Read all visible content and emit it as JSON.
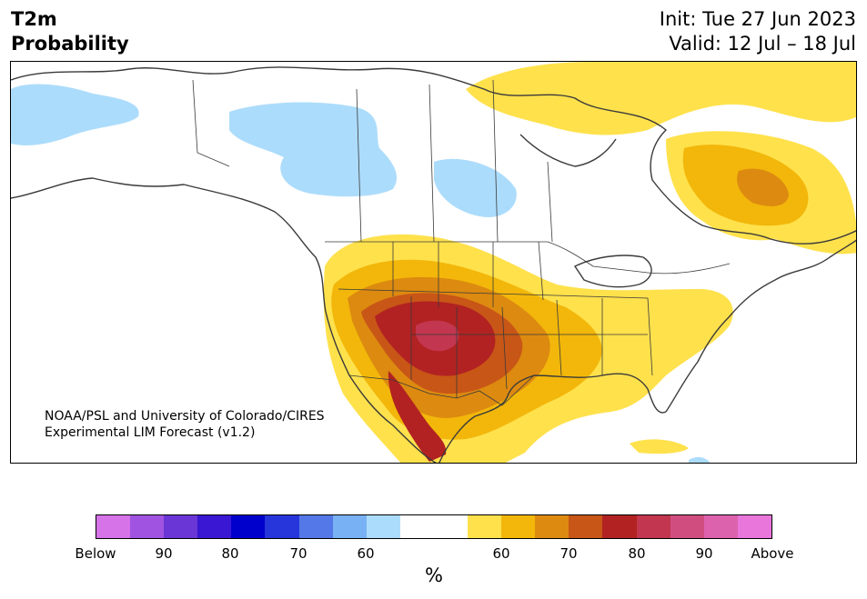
{
  "title": {
    "variable_line1": "T2m",
    "variable_line2": "Probability",
    "init": "Init: Tue 27 Jun 2023",
    "valid": "Valid: 12 Jul – 18 Jul"
  },
  "credit": {
    "line1": "NOAA/PSL and University of Colorado/CIRES",
    "line2": "Experimental LIM Forecast (v1.2)"
  },
  "colorbar": {
    "colors": [
      "#d673e8",
      "#a053e0",
      "#6a37d6",
      "#3a18d3",
      "#0000cc",
      "#2636db",
      "#5478e8",
      "#78b2f4",
      "#acdcfb",
      "#ffffff",
      "#ffffff",
      "#ffe14c",
      "#f2b70a",
      "#dd8a10",
      "#c85617",
      "#b22222",
      "#c2364f",
      "#d04e7f",
      "#dd62ad",
      "#e876db"
    ],
    "tick_labels": [
      "Below",
      "90",
      "80",
      "70",
      "60",
      "60",
      "70",
      "80",
      "90",
      "Above"
    ],
    "unit": "%"
  },
  "map": {
    "categories": [
      "below-60",
      "above-60",
      "above-70",
      "above-80",
      "above-90"
    ],
    "colors": {
      "below_60": "#acdcfb",
      "above_60": "#ffe14c",
      "above_70": "#f2b70a",
      "above_80": "#dd8a10",
      "above_90": "#c85617",
      "above_95": "#b22222",
      "above_98": "#c2364f",
      "coast": "#3a3a3a"
    }
  }
}
